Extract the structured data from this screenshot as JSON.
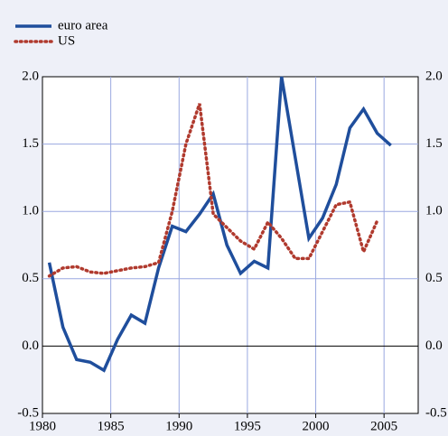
{
  "chart_data": {
    "type": "line",
    "x": [
      1980.5,
      1981.5,
      1982.5,
      1983.5,
      1984.5,
      1985.5,
      1986.5,
      1987.5,
      1988.5,
      1989.5,
      1990.5,
      1991.5,
      1992.5,
      1993.5,
      1994.5,
      1995.5,
      1996.5,
      1997.5,
      1998.5,
      1999.5,
      2000.5,
      2001.5,
      2002.5,
      2003.5,
      2004.5,
      2005.5
    ],
    "series": [
      {
        "name": "euro area",
        "color": "#1f4e9c",
        "style": "solid",
        "values": [
          0.62,
          0.14,
          -0.1,
          -0.12,
          -0.18,
          0.05,
          0.23,
          0.17,
          0.58,
          0.89,
          0.85,
          0.98,
          1.13,
          0.75,
          0.54,
          0.63,
          0.58,
          2.0,
          1.4,
          0.8,
          0.95,
          1.2,
          1.62,
          1.76,
          1.58,
          1.49
        ]
      },
      {
        "name": "US",
        "color": "#b03a2e",
        "style": "dotted",
        "values": [
          0.52,
          0.58,
          0.59,
          0.55,
          0.54,
          0.56,
          0.58,
          0.59,
          0.62,
          1.0,
          1.5,
          1.8,
          0.98,
          0.88,
          0.78,
          0.72,
          0.92,
          0.8,
          0.65,
          0.65,
          0.85,
          1.05,
          1.07,
          0.7,
          0.93,
          null
        ]
      }
    ],
    "xlim": [
      1980,
      2007.5
    ],
    "xticks": [
      1980,
      1985,
      1990,
      1995,
      2000,
      2005
    ],
    "ylim": [
      -0.5,
      2.0
    ],
    "yticks": [
      {
        "value": -0.5,
        "label": "-0.5"
      },
      {
        "value": 0,
        "label": "0.0"
      },
      {
        "value": 0.5,
        "label": "0.5"
      },
      {
        "value": 1,
        "label": "1.0"
      },
      {
        "value": 1.5,
        "label": "1.5"
      },
      {
        "value": 2,
        "label": "2.0"
      }
    ],
    "grid": true,
    "legend": "top-left"
  }
}
